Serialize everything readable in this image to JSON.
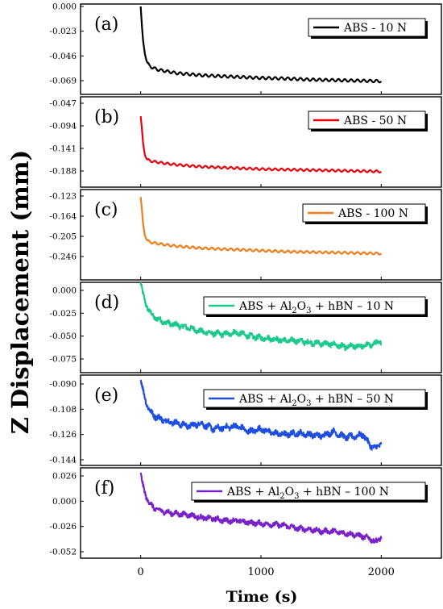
{
  "figure": {
    "ylabel": "Z Displacement (mm)",
    "xlabel": "Time (s)",
    "x_ticks": [
      "0",
      "1000",
      "2000"
    ]
  },
  "chart_data": [
    {
      "type": "line",
      "panel_label": "(a)",
      "legend": "ABS - 10 N",
      "color": "#000000",
      "x_range": [
        -500,
        2500
      ],
      "y_range": [
        -0.08,
        0.0
      ],
      "y_ticks": [
        0.0,
        -0.023,
        -0.046,
        -0.069
      ],
      "y_tick_labels": [
        "0.000",
        "-0.023",
        "-0.046",
        "-0.069"
      ],
      "series": [
        {
          "x": [
            0,
            10,
            20,
            35,
            50,
            70,
            100,
            150,
            200,
            300,
            400,
            500,
            600,
            800,
            1000,
            1200,
            1400,
            1600,
            1800,
            2000
          ],
          "y": [
            0.0,
            -0.018,
            -0.032,
            -0.044,
            -0.051,
            -0.055,
            -0.057,
            -0.059,
            -0.06,
            -0.062,
            -0.063,
            -0.064,
            -0.0645,
            -0.0655,
            -0.0665,
            -0.067,
            -0.068,
            -0.0685,
            -0.069,
            -0.0695
          ],
          "wave_amplitude": 0.0012
        }
      ]
    },
    {
      "type": "line",
      "panel_label": "(b)",
      "legend": "ABS - 50 N",
      "color": "#e8000b",
      "x_range": [
        -500,
        2500
      ],
      "y_range": [
        -0.2,
        -0.047
      ],
      "y_ticks": [
        -0.047,
        -0.094,
        -0.141,
        -0.188
      ],
      "y_tick_labels": [
        "-0.047",
        "-0.094",
        "-0.141",
        "-0.188"
      ],
      "series": [
        {
          "x": [
            0,
            10,
            20,
            35,
            50,
            70,
            100,
            150,
            200,
            300,
            400,
            500,
            600,
            800,
            1000,
            1200,
            1400,
            1600,
            1800,
            2000
          ],
          "y": [
            -0.074,
            -0.1,
            -0.13,
            -0.155,
            -0.163,
            -0.166,
            -0.168,
            -0.17,
            -0.172,
            -0.175,
            -0.177,
            -0.179,
            -0.18,
            -0.182,
            -0.184,
            -0.185,
            -0.186,
            -0.187,
            -0.188,
            -0.189
          ],
          "wave_amplitude": 0.0022
        }
      ]
    },
    {
      "type": "line",
      "panel_label": "(c)",
      "legend": "ABS - 100 N",
      "color": "#f07d1a",
      "x_range": [
        -500,
        2500
      ],
      "y_range": [
        -0.262,
        -0.123
      ],
      "y_ticks": [
        -0.123,
        -0.164,
        -0.205,
        -0.246
      ],
      "y_tick_labels": [
        "-0.123",
        "-0.164",
        "-0.205",
        "-0.246"
      ],
      "series": [
        {
          "x": [
            0,
            10,
            20,
            35,
            50,
            70,
            100,
            150,
            200,
            300,
            400,
            500,
            600,
            800,
            1000,
            1200,
            1400,
            1600,
            1800,
            2000
          ],
          "y": [
            -0.125,
            -0.15,
            -0.18,
            -0.203,
            -0.212,
            -0.216,
            -0.218,
            -0.22,
            -0.222,
            -0.225,
            -0.227,
            -0.229,
            -0.23,
            -0.232,
            -0.234,
            -0.236,
            -0.237,
            -0.238,
            -0.239,
            -0.24
          ],
          "wave_amplitude": 0.0022
        }
      ]
    },
    {
      "type": "line",
      "panel_label": "(d)",
      "legend_parts": [
        "ABS + Al",
        "2",
        "O",
        "3",
        " + hBN – 10 N"
      ],
      "color": "#1dc98e",
      "x_range": [
        -500,
        2500
      ],
      "y_range": [
        -0.075,
        0.012
      ],
      "y_ticks": [
        0.0,
        -0.025,
        -0.05,
        -0.075
      ],
      "y_tick_labels": [
        "0.000",
        "-0.025",
        "-0.050",
        "-0.075"
      ],
      "series": [
        {
          "x": [
            0,
            20,
            50,
            80,
            120,
            200,
            300,
            400,
            500,
            600,
            700,
            800,
            900,
            1000,
            1100,
            1200,
            1300,
            1400,
            1500,
            1600,
            1700,
            1800,
            1900,
            2000
          ],
          "y": [
            0.008,
            -0.005,
            -0.017,
            -0.025,
            -0.03,
            -0.035,
            -0.038,
            -0.041,
            -0.045,
            -0.047,
            -0.048,
            -0.046,
            -0.05,
            -0.052,
            -0.053,
            -0.055,
            -0.055,
            -0.057,
            -0.058,
            -0.059,
            -0.062,
            -0.061,
            -0.06,
            -0.056
          ],
          "noise_amplitude": 0.0025
        }
      ]
    },
    {
      "type": "line",
      "panel_label": "(e)",
      "legend_parts": [
        "ABS + Al",
        "2",
        "O",
        "3",
        " + hBN – 50 N"
      ],
      "color": "#1e4fe0",
      "x_range": [
        -500,
        2500
      ],
      "y_range": [
        -0.144,
        -0.082
      ],
      "y_ticks": [
        -0.09,
        -0.108,
        -0.126,
        -0.144
      ],
      "y_tick_labels": [
        "-0.090",
        "-0.108",
        "-0.126",
        "-0.144"
      ],
      "series": [
        {
          "x": [
            0,
            20,
            50,
            80,
            120,
            200,
            300,
            400,
            500,
            600,
            700,
            800,
            900,
            1000,
            1100,
            1200,
            1300,
            1400,
            1500,
            1600,
            1700,
            1800,
            1850,
            1900,
            1950,
            2000
          ],
          "y": [
            -0.087,
            -0.095,
            -0.104,
            -0.11,
            -0.113,
            -0.116,
            -0.118,
            -0.12,
            -0.118,
            -0.122,
            -0.121,
            -0.12,
            -0.124,
            -0.122,
            -0.125,
            -0.126,
            -0.125,
            -0.126,
            -0.127,
            -0.124,
            -0.128,
            -0.127,
            -0.126,
            -0.133,
            -0.136,
            -0.132
          ],
          "noise_amplitude": 0.0018
        }
      ]
    },
    {
      "type": "line",
      "panel_label": "(f)",
      "legend_parts": [
        "ABS + Al",
        "2",
        "O",
        "3",
        " + hBN – 100 N"
      ],
      "color": "#7a22c9",
      "x_range": [
        -500,
        2500
      ],
      "y_range": [
        -0.052,
        0.034
      ],
      "y_ticks": [
        0.026,
        0.0,
        -0.026,
        -0.052
      ],
      "y_tick_labels": [
        "0.026",
        "0.000",
        "-0.026",
        "-0.052"
      ],
      "series": [
        {
          "x": [
            0,
            20,
            50,
            80,
            120,
            200,
            300,
            400,
            500,
            600,
            700,
            800,
            900,
            1000,
            1100,
            1200,
            1300,
            1400,
            1500,
            1600,
            1700,
            1800,
            1900,
            1950,
            2000
          ],
          "y": [
            0.028,
            0.015,
            0.003,
            -0.003,
            -0.008,
            -0.011,
            -0.013,
            -0.014,
            -0.017,
            -0.018,
            -0.02,
            -0.02,
            -0.022,
            -0.023,
            -0.024,
            -0.025,
            -0.028,
            -0.029,
            -0.031,
            -0.031,
            -0.033,
            -0.035,
            -0.038,
            -0.042,
            -0.037
          ],
          "noise_amplitude": 0.0022
        }
      ]
    }
  ]
}
